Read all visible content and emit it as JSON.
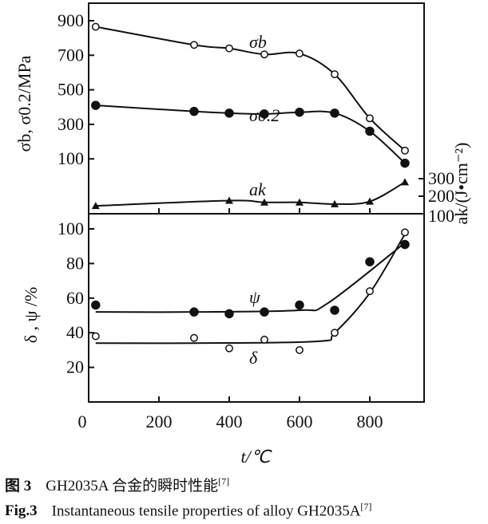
{
  "chart_data": [
    {
      "type": "line",
      "panel": "upper",
      "ylabel": "σb, σ0.2/MPa",
      "y2label": "ak/(J•cm⁻²)",
      "x_ticks": [
        200,
        400,
        600,
        800
      ],
      "y_ticks": [
        100,
        300,
        500,
        700,
        900
      ],
      "y2_ticks": [
        100,
        200,
        300
      ],
      "series": [
        {
          "name": "σb",
          "marker": "open-circle",
          "x": [
            20,
            300,
            400,
            500,
            600,
            700,
            800,
            900
          ],
          "values": [
            865,
            760,
            740,
            705,
            710,
            590,
            335,
            148
          ]
        },
        {
          "name": "σ0.2",
          "marker": "filled-circle",
          "x": [
            20,
            300,
            400,
            500,
            600,
            700,
            800,
            900
          ],
          "values": [
            410,
            375,
            365,
            360,
            370,
            365,
            260,
            75
          ]
        },
        {
          "name": "ak",
          "axis": "right",
          "marker": "filled-triangle",
          "x": [
            20,
            400,
            500,
            600,
            700,
            800,
            900
          ],
          "values": [
            145,
            175,
            165,
            165,
            155,
            170,
            280
          ]
        }
      ]
    },
    {
      "type": "scatter",
      "panel": "lower",
      "ylabel": "δ , ψ /%",
      "xlabel": "t/℃",
      "x_ticks": [
        0,
        200,
        400,
        600,
        800
      ],
      "y_ticks": [
        20,
        40,
        60,
        80,
        100
      ],
      "xlim": [
        0,
        950
      ],
      "ylim": [
        0,
        110
      ],
      "series": [
        {
          "name": "ψ",
          "marker": "filled-circle",
          "x": [
            20,
            300,
            400,
            500,
            600,
            700,
            800,
            900
          ],
          "values": [
            56,
            52,
            51,
            52,
            56,
            53,
            81,
            91
          ],
          "fit": [
            [
              20,
              52
            ],
            [
              300,
              52
            ],
            [
              600,
              53
            ],
            [
              680,
              57
            ],
            [
              900,
              92
            ]
          ]
        },
        {
          "name": "δ",
          "marker": "open-circle",
          "x": [
            20,
            300,
            400,
            500,
            600,
            700,
            800,
            900
          ],
          "values": [
            38,
            37,
            31,
            36,
            30,
            40,
            64,
            98
          ],
          "fit": [
            [
              20,
              34
            ],
            [
              300,
              34
            ],
            [
              650,
              35
            ],
            [
              700,
              40
            ],
            [
              800,
              63
            ],
            [
              900,
              97
            ]
          ]
        }
      ]
    }
  ],
  "caption": {
    "cn_label": "图 3",
    "cn_text": "GH2035A 合金的瞬时性能",
    "cn_ref": "[7]",
    "en_label": "Fig.3",
    "en_text": "Instantaneous tensile properties of alloy GH2035A",
    "en_ref": "[7]"
  }
}
